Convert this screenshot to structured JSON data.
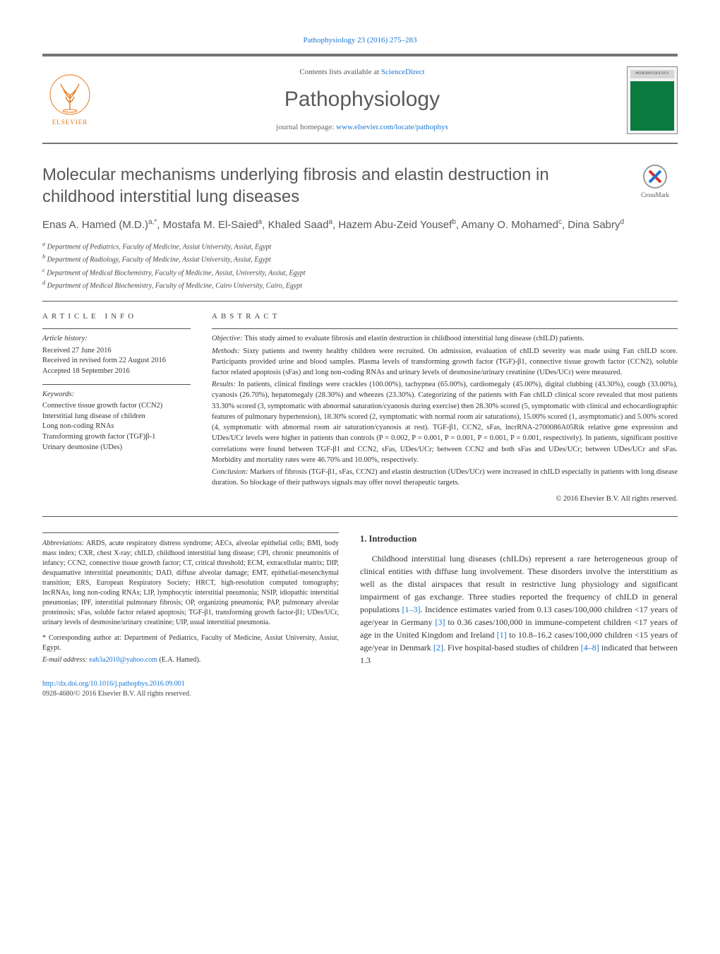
{
  "citation": "Pathophysiology 23 (2016) 275–283",
  "header": {
    "contents_prefix": "Contents lists available at ",
    "contents_link": "ScienceDirect",
    "journal": "Pathophysiology",
    "homepage_prefix": "journal homepage: ",
    "homepage_url": "www.elsevier.com/locate/pathophys",
    "publisher_label": "ELSEVIER",
    "cover_label": "PATHOPHYSIOLOGY"
  },
  "crossmark_label": "CrossMark",
  "title": "Molecular mechanisms underlying fibrosis and elastin destruction in childhood interstitial lung diseases",
  "authors_html": "Enas A. Hamed (M.D.)<sup>a,*</sup>, Mostafa M. El-Saied<sup>a</sup>, Khaled Saad<sup>a</sup>, Hazem Abu-Zeid Yousef<sup>b</sup>, Amany O. Mohamed<sup>c</sup>, Dina Sabry<sup>d</sup>",
  "affiliations": [
    "a Department of Pediatrics, Faculty of Medicine, Assiut University, Assiut, Egypt",
    "b Department of Radiology, Faculty of Medicine, Assiut University, Assiut, Egypt",
    "c Department of Medical Biochemistry, Faculty of Medicine, Assiut, University, Assiut, Egypt",
    "d Department of Medical Biochemistry, Faculty of Medicine, Cairo University, Cairo, Egypt"
  ],
  "article_info_heading": "ARTICLE INFO",
  "history_heading": "Article history:",
  "history": [
    "Received 27 June 2016",
    "Received in revised form 22 August 2016",
    "Accepted 18 September 2016"
  ],
  "keywords_heading": "Keywords:",
  "keywords": [
    "Connective tissue growth factor (CCN2)",
    "Interstitial lung disease of children",
    "Long non-coding RNAs",
    "Transforming growth factor (TGF)β-1",
    "Urinary desmosine (UDes)"
  ],
  "abstract_heading": "ABSTRACT",
  "abstract": {
    "objective_label": "Objective:",
    "objective": " This study aimed to evaluate fibrosis and elastin destruction in childhood interstitial lung disease (chILD) patients.",
    "methods_label": "Methods:",
    "methods": " Sixty patients and twenty healthy children were recruited. On admission, evaluation of chILD severity was made using Fan chILD score. Participants provided urine and blood samples. Plasma levels of transforming growth factor (TGF)-β1, connective tissue growth factor (CCN2), soluble factor related apoptosis (sFas) and long non-coding RNAs and urinary levels of desmosine/urinary creatinine (UDes/UCr) were measured.",
    "results_label": "Results:",
    "results": " In patients, clinical findings were crackles (100.00%), tachypnea (65.00%), cardiomegaly (45.00%), digital clubbing (43.30%), cough (33.00%), cyanosis (26.70%), hepatomegaly (28.30%) and wheezes (23.30%). Categorizing of the patients with Fan chILD clinical score revealed that most patients 33.30% scored (3, symptomatic with abnormal saturation/cyanosis during exercise) then 28.30% scored (5, symptomatic with clinical and echocardiographic features of pulmonary hypertension), 18.30% scored (2, symptomatic with normal room air saturations), 15.00% scored (1, asymptomatic) and 5.00% scored (4, symptomatic with abnormal room air saturation/cyanosis at rest). TGF-β1, CCN2, sFas, lncrRNA-2700086A05Rik relative gene expression and UDes/UCr levels were higher in patients than controls (P = 0.002, P = 0.001, P = 0.001, P = 0.001, P = 0.001, respectively). In patients, significant positive correlations were found between TGF-β1 and CCN2, sFas, UDes/UCr; between CCN2 and both sFas and UDes/UCr; between UDes/UCr and sFas. Morbidity and mortality rates were 46.70% and 10.00%, respectively.",
    "conclusion_label": "Conclusion:",
    "conclusion": " Markers of fibrosis (TGF-β1, sFas, CCN2) and elastin destruction (UDes/UCr) were increased in chILD especially in patients with long disease duration. So blockage of their pathways signals may offer novel therapeutic targets."
  },
  "copyright": "© 2016 Elsevier B.V. All rights reserved.",
  "abbrev_label": "Abbreviations:",
  "abbreviations": " ARDS, acute respiratory distress syndrome; AECs, alveolar epithelial cells; BMI, body mass index; CXR, chest X-ray; chILD, childhood interstitial lung disease; CPI, chronic pneumonitis of infancy; CCN2, connective tissue growth factor; CT, critical threshold; ECM, extracellular matrix; DIP, desquamative interstitial pneumonitis; DAD, diffuse alveolar damage; EMT, epithelial-mesenchymal transition; ERS, European Respiratory Society; HRCT, high-resolution computed tomography; lncRNAs, long non-coding RNAs; LIP, lymphocytic interstitial pneumonia; NSIP, idiopathic interstitial pneumonias; IPF, interstitial pulmonary fibrosis; OP, organizing pneumonia; PAP, pulmonary alveolar proteinosis; sFas, soluble factor related apoptosis; TGF-β1, transforming growth factor-β1; UDes/UCr, urinary levels of desmosine/urinary creatinine; UIP, usual interstitial pneumonia.",
  "corr_label": "* Corresponding author at:",
  "corresponding": " Department of Pediatrics, Faculty of Medicine, Assiut University, Assiut, Egypt.",
  "email_label": "E-mail address:",
  "email": "eah3a2010@yahoo.com",
  "email_suffix": " (E.A. Hamed).",
  "section1_heading": "1. Introduction",
  "intro_text_pre": "Childhood interstitial lung diseases (chILDs) represent a rare heterogeneous group of clinical entities with diffuse lung involvement. These disorders involve the interstitium as well as the distal airspaces that result in restrictive lung physiology and significant impairment of gas exchange. Three studies reported the frequency of chILD in general populations ",
  "ref1": "[1–3]",
  "intro_text_mid1": ". Incidence estimates varied from 0.13 cases/100,000 children <17 years of age/year in Germany ",
  "ref2": "[3]",
  "intro_text_mid2": " to 0.36 cases/100,000 in immune-competent children <17 years of age in the United Kingdom and Ireland ",
  "ref3": "[1]",
  "intro_text_mid3": " to 10.8–16.2 cases/100,000 children <15 years of age/year in Denmark ",
  "ref4": "[2]",
  "intro_text_mid4": ". Five hospital-based studies of children ",
  "ref5": "[4–8]",
  "intro_text_end": " indicated that between 1.3",
  "doi_url": "http://dx.doi.org/10.1016/j.pathophys.2016.09.001",
  "issn_line": "0928-4680/© 2016 Elsevier B.V. All rights reserved.",
  "colors": {
    "link": "#1976d2",
    "rule": "#555555",
    "heading": "#585858",
    "orange": "#e67817"
  }
}
